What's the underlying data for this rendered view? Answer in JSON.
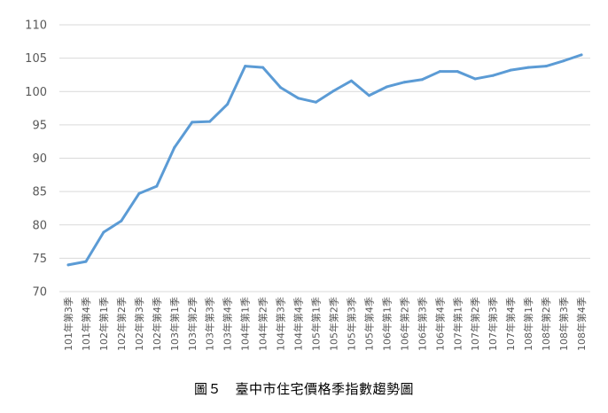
{
  "caption": "圖５　臺中市住宅價格季指數趨勢圖",
  "colors": {
    "line": "#5b9bd5",
    "grid": "#d9d9d9",
    "tick_text": "#595959"
  },
  "chart_data": {
    "type": "line",
    "title": "",
    "xlabel": "",
    "ylabel": "",
    "ylim": [
      70,
      110
    ],
    "yticks": [
      70,
      75,
      80,
      85,
      90,
      95,
      100,
      105,
      110
    ],
    "grid": true,
    "legend": "none",
    "categories": [
      "101年第3季",
      "101年第4季",
      "102年第1季",
      "102年第2季",
      "102年第3季",
      "102年第4季",
      "103年第1季",
      "103年第2季",
      "103年第3季",
      "103年第4季",
      "104年第1季",
      "104年第2季",
      "104年第3季",
      "104年第4季",
      "105年第1季",
      "105年第2季",
      "105年第3季",
      "105年第4季",
      "106年第1季",
      "106年第2季",
      "106年第3季",
      "106年第4季",
      "107年第1季",
      "107年第2季",
      "107年第3季",
      "107年第4季",
      "108年第1季",
      "108年第2季",
      "108年第3季",
      "108年第4季"
    ],
    "series": [
      {
        "values": [
          74.0,
          74.5,
          78.9,
          80.6,
          84.7,
          85.8,
          91.6,
          95.4,
          95.5,
          98.1,
          103.8,
          103.6,
          100.6,
          99.0,
          98.4,
          100.1,
          101.6,
          99.4,
          100.7,
          101.4,
          101.8,
          103.0,
          103.0,
          101.9,
          102.4,
          103.2,
          103.6,
          103.8,
          104.6,
          105.5
        ]
      }
    ]
  }
}
